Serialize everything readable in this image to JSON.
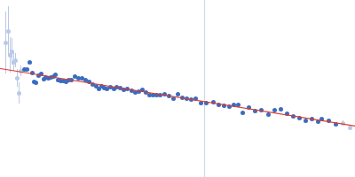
{
  "chart_data": {
    "type": "scatter",
    "tick_labels": false,
    "grid": false,
    "xlim": [
      0,
      400
    ],
    "ylim": [
      0,
      200
    ],
    "series": [
      {
        "type": "line",
        "color": "#d0d7e6",
        "x": [
          230,
          230
        ],
        "values": [
          0,
          200
        ]
      },
      {
        "type": "scatter",
        "color": "#b9c9e6",
        "marker": "circle",
        "x": [
          6,
          9,
          11,
          13,
          15,
          17,
          19,
          21,
          23,
          386,
          394
        ],
        "values": [
          152,
          165,
          138,
          142,
          130,
          132,
          112,
          95,
          120,
          61,
          56
        ],
        "error": [
          35,
          28,
          20,
          15,
          10,
          8,
          10,
          12,
          6,
          3,
          3
        ]
      },
      {
        "type": "scatter",
        "color": "#3a6cc0",
        "marker": "circle",
        "x": [
          27,
          30,
          33,
          36,
          38,
          40,
          43,
          46,
          49,
          51,
          54,
          57,
          60,
          62,
          65,
          68,
          71,
          74,
          77,
          80,
          84,
          88,
          92,
          96,
          100,
          104,
          108,
          111,
          114,
          117,
          120,
          124,
          128,
          131,
          135,
          139,
          143,
          148,
          152,
          156,
          160,
          164,
          168,
          172,
          176,
          180,
          185,
          190,
          195,
          200,
          205,
          210,
          215,
          220,
          226,
          232,
          240,
          246,
          252,
          258,
          263,
          268,
          273,
          280,
          287,
          294,
          302,
          309,
          316,
          323,
          330,
          337,
          344,
          351,
          358,
          362,
          370,
          378
        ],
        "values": [
          122,
          122,
          130,
          118,
          108,
          107,
          115,
          117,
          111,
          113,
          112,
          113,
          114,
          116,
          110,
          109,
          109,
          108,
          110,
          110,
          114,
          112,
          112,
          110,
          108,
          105,
          103,
          100,
          103,
          101,
          100,
          102,
          100,
          102,
          101,
          99,
          100,
          98,
          96,
          97,
          99,
          96,
          93,
          93,
          93,
          93,
          94,
          92,
          89,
          94,
          90,
          89,
          88,
          89,
          84,
          84,
          85,
          82,
          81,
          80,
          82,
          82,
          73,
          79,
          75,
          76,
          71,
          76,
          77,
          72,
          69,
          67,
          64,
          66,
          63,
          66,
          64,
          60
        ]
      },
      {
        "type": "line",
        "color": "#e0392b",
        "x": [
          0,
          400
        ],
        "values": [
          123,
          58
        ]
      }
    ]
  }
}
